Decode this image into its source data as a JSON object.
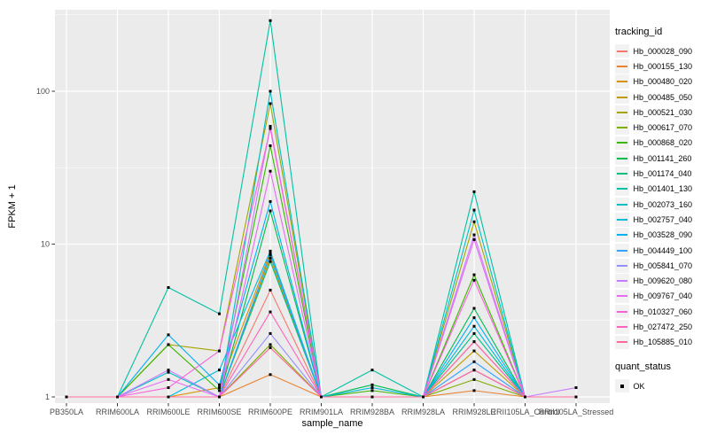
{
  "figure": {
    "y_axis_title": "FPKM + 1",
    "x_axis_title": "sample_name",
    "legend_tracking_title": "tracking_id",
    "legend_quant_title": "quant_status",
    "legend_quant_ok": "OK"
  },
  "chart_data": {
    "type": "line",
    "title": "",
    "xlabel": "sample_name",
    "ylabel": "FPKM + 1",
    "y_scale": "log10",
    "ylim": [
      1,
      340
    ],
    "y_ticks": [
      "1",
      "10",
      "100"
    ],
    "y_minor_breaks": [
      3.162,
      31.62,
      316.2
    ],
    "grid": true,
    "legend_position": "right",
    "panel_bg": "#EBEBEB",
    "grid_color": "#FFFFFF",
    "point_color": "#000000",
    "tick_text_color": "#4D4D4D",
    "quant_status_items": [
      {
        "label": "OK",
        "shape": "black-square"
      }
    ],
    "categories": [
      "PB350LA",
      "RRIM600LA",
      "RRIM600LE",
      "RRIM600SE",
      "RRIM600PE",
      "RRIM901LA",
      "RRIM928BA",
      "RRIM928LA",
      "RRIM928LE",
      "RRII105LA_Control",
      "RRII105LA_Stressed"
    ],
    "series": [
      {
        "name": "Hb_000028_090",
        "color": "#F8766D",
        "values": [
          1,
          1,
          1,
          1,
          5,
          1,
          1,
          1,
          1.5,
          1,
          1
        ]
      },
      {
        "name": "Hb_000155_130",
        "color": "#EA8331",
        "values": [
          1,
          1,
          1,
          1,
          1.4,
          1,
          1,
          1,
          1.1,
          1,
          1
        ]
      },
      {
        "name": "Hb_000480_020",
        "color": "#D89000",
        "values": [
          1,
          1,
          1,
          1.15,
          8.8,
          1,
          1,
          1,
          2.3,
          1,
          1
        ]
      },
      {
        "name": "Hb_000485_050",
        "color": "#C09B00",
        "values": [
          1,
          1,
          1,
          1,
          8.1,
          1,
          1,
          1,
          2,
          1,
          1
        ]
      },
      {
        "name": "Hb_000521_030",
        "color": "#A3A500",
        "values": [
          1,
          1,
          2.2,
          2,
          83,
          1,
          1,
          1,
          14,
          1,
          1
        ]
      },
      {
        "name": "Hb_000617_070",
        "color": "#7CAE00",
        "values": [
          1,
          1,
          1,
          1,
          2.2,
          1,
          1,
          1,
          1.3,
          1,
          1
        ]
      },
      {
        "name": "Hb_000868_020",
        "color": "#39B600",
        "values": [
          1,
          1,
          2.2,
          1.1,
          44,
          1,
          1.1,
          1,
          6.3,
          1,
          1
        ]
      },
      {
        "name": "Hb_001141_260",
        "color": "#00BB4E",
        "values": [
          1,
          1,
          1,
          1,
          16.5,
          1,
          1.2,
          1,
          3.8,
          1,
          1
        ]
      },
      {
        "name": "Hb_001174_040",
        "color": "#00BF7D",
        "values": [
          1,
          1,
          1,
          1,
          7.7,
          1,
          1,
          1,
          2.6,
          1,
          1
        ]
      },
      {
        "name": "Hb_001401_130",
        "color": "#00C1A3",
        "values": [
          1,
          1,
          5.2,
          3.5,
          290,
          1,
          1.5,
          1,
          22,
          1,
          1
        ]
      },
      {
        "name": "Hb_002073_160",
        "color": "#00BFC4",
        "values": [
          1,
          1,
          1.45,
          1,
          100,
          1,
          1,
          1,
          16.7,
          1,
          1
        ]
      },
      {
        "name": "Hb_002757_040",
        "color": "#00BAE0",
        "values": [
          1,
          1,
          1,
          1.5,
          9,
          1,
          1.15,
          1,
          2.9,
          1,
          1
        ]
      },
      {
        "name": "Hb_003528_090",
        "color": "#00B0F6",
        "values": [
          1,
          1,
          2.55,
          1.2,
          19,
          1,
          1,
          1,
          3.3,
          1,
          1
        ]
      },
      {
        "name": "Hb_004449_100",
        "color": "#35A2FF",
        "values": [
          1,
          1,
          1,
          1,
          8.5,
          1,
          1,
          1,
          1.7,
          1,
          1
        ]
      },
      {
        "name": "Hb_005841_070",
        "color": "#9590FF",
        "values": [
          1,
          1,
          1,
          1,
          2.6,
          1,
          1,
          1,
          1.5,
          1,
          1
        ]
      },
      {
        "name": "Hb_009620_080",
        "color": "#C77CFF",
        "values": [
          1,
          1,
          1.5,
          1,
          59,
          1,
          1,
          1,
          11.5,
          1,
          1.15
        ]
      },
      {
        "name": "Hb_009767_040",
        "color": "#E76BF3",
        "values": [
          1,
          1,
          1.3,
          1,
          30,
          1,
          1,
          1,
          10.7,
          1,
          1
        ]
      },
      {
        "name": "Hb_010327_060",
        "color": "#FA62DB",
        "values": [
          1,
          1,
          1.15,
          2,
          57,
          1,
          1,
          1,
          5.8,
          1,
          1
        ]
      },
      {
        "name": "Hb_027472_250",
        "color": "#FF62BC",
        "values": [
          1,
          1,
          1,
          1,
          3.6,
          1,
          1,
          1,
          2.3,
          1,
          1
        ]
      },
      {
        "name": "Hb_105885_010",
        "color": "#FF6A98",
        "values": [
          1,
          1,
          1,
          1,
          2.1,
          1,
          1,
          1,
          1.5,
          1,
          1
        ]
      }
    ]
  }
}
